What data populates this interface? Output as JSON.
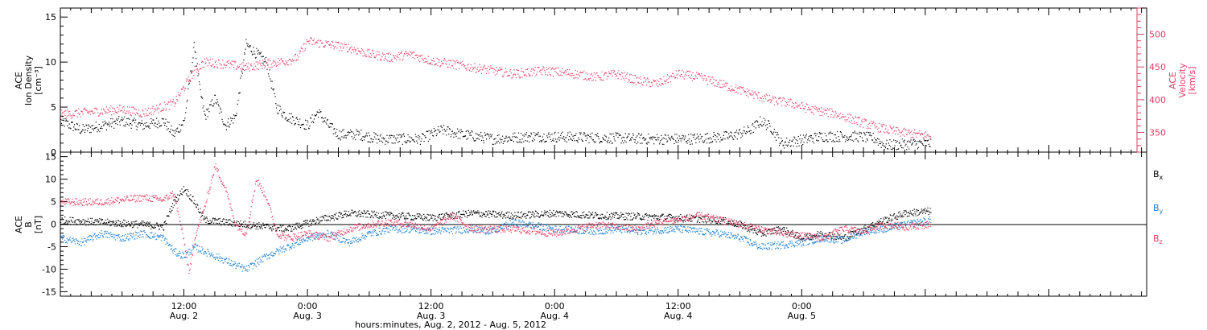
{
  "chart_data": [
    {
      "type": "scatter",
      "panel": "top",
      "ylabel_left": [
        "ACE",
        "Ion Density",
        "[cm⁻³]"
      ],
      "ylabel_right": [
        "ACE",
        "Velocity",
        "[km/s]"
      ],
      "ylim_left": [
        0,
        16
      ],
      "ylim_right": [
        320,
        540
      ],
      "yticks_left": [
        0,
        5,
        10,
        15
      ],
      "yticks_right": [
        350,
        400,
        450,
        500
      ],
      "xlim_hours": [
        0,
        105.5
      ],
      "colors": {
        "density": "#000000",
        "velocity": "#e83c64"
      },
      "series": [
        {
          "name": "",
          "axis": "left",
          "anchors": [
            [
              0,
              3.5
            ],
            [
              2,
              2.5
            ],
            [
              4,
              3
            ],
            [
              6,
              3.5
            ],
            [
              8,
              3
            ],
            [
              10,
              3.5
            ],
            [
              11,
              2
            ],
            [
              12,
              3.5
            ],
            [
              13,
              12
            ],
            [
              13.5,
              7
            ],
            [
              14,
              4
            ],
            [
              15,
              6
            ],
            [
              16,
              3
            ],
            [
              17,
              4
            ],
            [
              18,
              12
            ],
            [
              19,
              11
            ],
            [
              20,
              10
            ],
            [
              21,
              5
            ],
            [
              22,
              4
            ],
            [
              24,
              3
            ],
            [
              25,
              4.5
            ],
            [
              26,
              3
            ],
            [
              27,
              2
            ],
            [
              29,
              2
            ],
            [
              31,
              1.5
            ],
            [
              33,
              1.5
            ],
            [
              35,
              1.5
            ],
            [
              37,
              2.5
            ],
            [
              39,
              2
            ],
            [
              42,
              1.5
            ],
            [
              46,
              1.8
            ],
            [
              50,
              1.7
            ],
            [
              54,
              1.6
            ],
            [
              57,
              1.5
            ],
            [
              61,
              1.5
            ],
            [
              65,
              1.8
            ],
            [
              67,
              2.5
            ],
            [
              68,
              3.5
            ],
            [
              69,
              2.8
            ],
            [
              70,
              1
            ],
            [
              72,
              1.4
            ],
            [
              74,
              1.8
            ],
            [
              77,
              1.8
            ],
            [
              79,
              1.6
            ],
            [
              80,
              0.8
            ],
            [
              83,
              1
            ],
            [
              84.5,
              1
            ]
          ]
        },
        {
          "name": "",
          "axis": "right",
          "anchors": [
            [
              0,
              378
            ],
            [
              3,
              382
            ],
            [
              6,
              386
            ],
            [
              8,
              380
            ],
            [
              10,
              390
            ],
            [
              11,
              395
            ],
            [
              12,
              420
            ],
            [
              13,
              445
            ],
            [
              14,
              458
            ],
            [
              16,
              455
            ],
            [
              18,
              450
            ],
            [
              20,
              456
            ],
            [
              22,
              460
            ],
            [
              23,
              465
            ],
            [
              24,
              490
            ],
            [
              26,
              485
            ],
            [
              28,
              480
            ],
            [
              30,
              470
            ],
            [
              32,
              465
            ],
            [
              34,
              470
            ],
            [
              36,
              460
            ],
            [
              40,
              450
            ],
            [
              42,
              445
            ],
            [
              44,
              440
            ],
            [
              47,
              445
            ],
            [
              50,
              440
            ],
            [
              52,
              435
            ],
            [
              54,
              440
            ],
            [
              56,
              430
            ],
            [
              58,
              425
            ],
            [
              60,
              440
            ],
            [
              62,
              435
            ],
            [
              64,
              425
            ],
            [
              67,
              410
            ],
            [
              69,
              400
            ],
            [
              71,
              395
            ],
            [
              73,
              385
            ],
            [
              75,
              380
            ],
            [
              77,
              370
            ],
            [
              79,
              360
            ],
            [
              81,
              352
            ],
            [
              84.5,
              345
            ]
          ]
        }
      ]
    },
    {
      "type": "scatter",
      "panel": "bottom",
      "ylabel_left": [
        "ACE",
        "B",
        "[nT]"
      ],
      "ylim": [
        -16,
        16
      ],
      "yticks": [
        -15,
        -10,
        -5,
        0,
        5,
        10,
        15
      ],
      "zero_line": true,
      "xlim_hours": [
        0,
        105.5
      ],
      "series": [
        {
          "name": "Bx",
          "label_main": "B",
          "label_sub": "x",
          "color": "#000000",
          "anchors": [
            [
              0,
              1
            ],
            [
              4,
              0.5
            ],
            [
              8,
              0
            ],
            [
              10,
              -0.5
            ],
            [
              11,
              5
            ],
            [
              12,
              8
            ],
            [
              13,
              5
            ],
            [
              14,
              1
            ],
            [
              18,
              0
            ],
            [
              22,
              -1
            ],
            [
              25,
              1
            ],
            [
              28,
              2.5
            ],
            [
              32,
              2
            ],
            [
              36,
              1.5
            ],
            [
              40,
              2.5
            ],
            [
              44,
              2
            ],
            [
              48,
              2.5
            ],
            [
              52,
              2
            ],
            [
              56,
              1.8
            ],
            [
              60,
              1.5
            ],
            [
              64,
              1
            ],
            [
              66,
              0
            ],
            [
              68,
              -2
            ],
            [
              70,
              -1
            ],
            [
              72,
              -3
            ],
            [
              74,
              -2
            ],
            [
              76,
              -3
            ],
            [
              78,
              -1
            ],
            [
              80,
              1
            ],
            [
              82,
              2.5
            ],
            [
              84.5,
              3
            ]
          ]
        },
        {
          "name": "By",
          "label_main": "B",
          "label_sub": "y",
          "color": "#1a7fd6",
          "anchors": [
            [
              0,
              -3
            ],
            [
              2,
              -4
            ],
            [
              4,
              -2
            ],
            [
              6,
              -3
            ],
            [
              8,
              -2
            ],
            [
              10,
              -3
            ],
            [
              11,
              -6
            ],
            [
              12,
              -7
            ],
            [
              13,
              -5
            ],
            [
              14,
              -6
            ],
            [
              16,
              -8
            ],
            [
              18,
              -10
            ],
            [
              20,
              -7
            ],
            [
              22,
              -5
            ],
            [
              24,
              -3
            ],
            [
              26,
              -2
            ],
            [
              28,
              -4
            ],
            [
              30,
              -2
            ],
            [
              32,
              -1
            ],
            [
              34,
              -1
            ],
            [
              36,
              -1.5
            ],
            [
              40,
              -1
            ],
            [
              42,
              -1.5
            ],
            [
              44,
              0.5
            ],
            [
              48,
              -1
            ],
            [
              52,
              -1.5
            ],
            [
              54,
              -1
            ],
            [
              56,
              -1.5
            ],
            [
              60,
              -1
            ],
            [
              62,
              -1.5
            ],
            [
              64,
              -2
            ],
            [
              66,
              -3
            ],
            [
              68,
              -5
            ],
            [
              72,
              -4
            ],
            [
              74,
              -3
            ],
            [
              76,
              -3.5
            ],
            [
              78,
              -1.5
            ],
            [
              80,
              -1
            ],
            [
              82,
              0
            ],
            [
              84.5,
              1
            ]
          ]
        },
        {
          "name": "Bz",
          "label_main": "B",
          "label_sub": "z",
          "color": "#e83c64",
          "anchors": [
            [
              0,
              5
            ],
            [
              4,
              5
            ],
            [
              8,
              6
            ],
            [
              10,
              5.5
            ],
            [
              11,
              7
            ],
            [
              12,
              -4
            ],
            [
              12.5,
              -11
            ],
            [
              13,
              -3
            ],
            [
              14,
              4
            ],
            [
              15,
              13
            ],
            [
              16,
              8
            ],
            [
              17,
              0
            ],
            [
              18,
              -2
            ],
            [
              19,
              10
            ],
            [
              20,
              6
            ],
            [
              21,
              -2
            ],
            [
              22,
              -3
            ],
            [
              24,
              -2
            ],
            [
              26,
              -3
            ],
            [
              28,
              -1
            ],
            [
              30,
              0
            ],
            [
              32,
              0.5
            ],
            [
              34,
              0
            ],
            [
              36,
              -1
            ],
            [
              38,
              2
            ],
            [
              40,
              -1
            ],
            [
              44,
              -1
            ],
            [
              48,
              -2
            ],
            [
              52,
              0
            ],
            [
              56,
              -1
            ],
            [
              58,
              0.5
            ],
            [
              60,
              1
            ],
            [
              62,
              2
            ],
            [
              64,
              1
            ],
            [
              66,
              0
            ],
            [
              68,
              -1
            ],
            [
              70,
              -2
            ],
            [
              72,
              -2.5
            ],
            [
              74,
              -3
            ],
            [
              76,
              -1
            ],
            [
              78,
              -1.5
            ],
            [
              80,
              0
            ],
            [
              82,
              -0.5
            ],
            [
              84.5,
              0
            ]
          ]
        }
      ]
    }
  ],
  "xaxis": {
    "major_ticks": [
      {
        "hour": 12,
        "time": "12:00",
        "date": "Aug. 2"
      },
      {
        "hour": 24,
        "time": "0:00",
        "date": "Aug. 3"
      },
      {
        "hour": 36,
        "time": "12:00",
        "date": "Aug. 3"
      },
      {
        "hour": 48,
        "time": "0:00",
        "date": "Aug. 4"
      },
      {
        "hour": 60,
        "time": "12:00",
        "date": "Aug. 4"
      },
      {
        "hour": 72,
        "time": "0:00",
        "date": "Aug. 5"
      }
    ],
    "title": "hours:minutes, Aug.  2, 2012 - Aug.  5, 2012"
  }
}
